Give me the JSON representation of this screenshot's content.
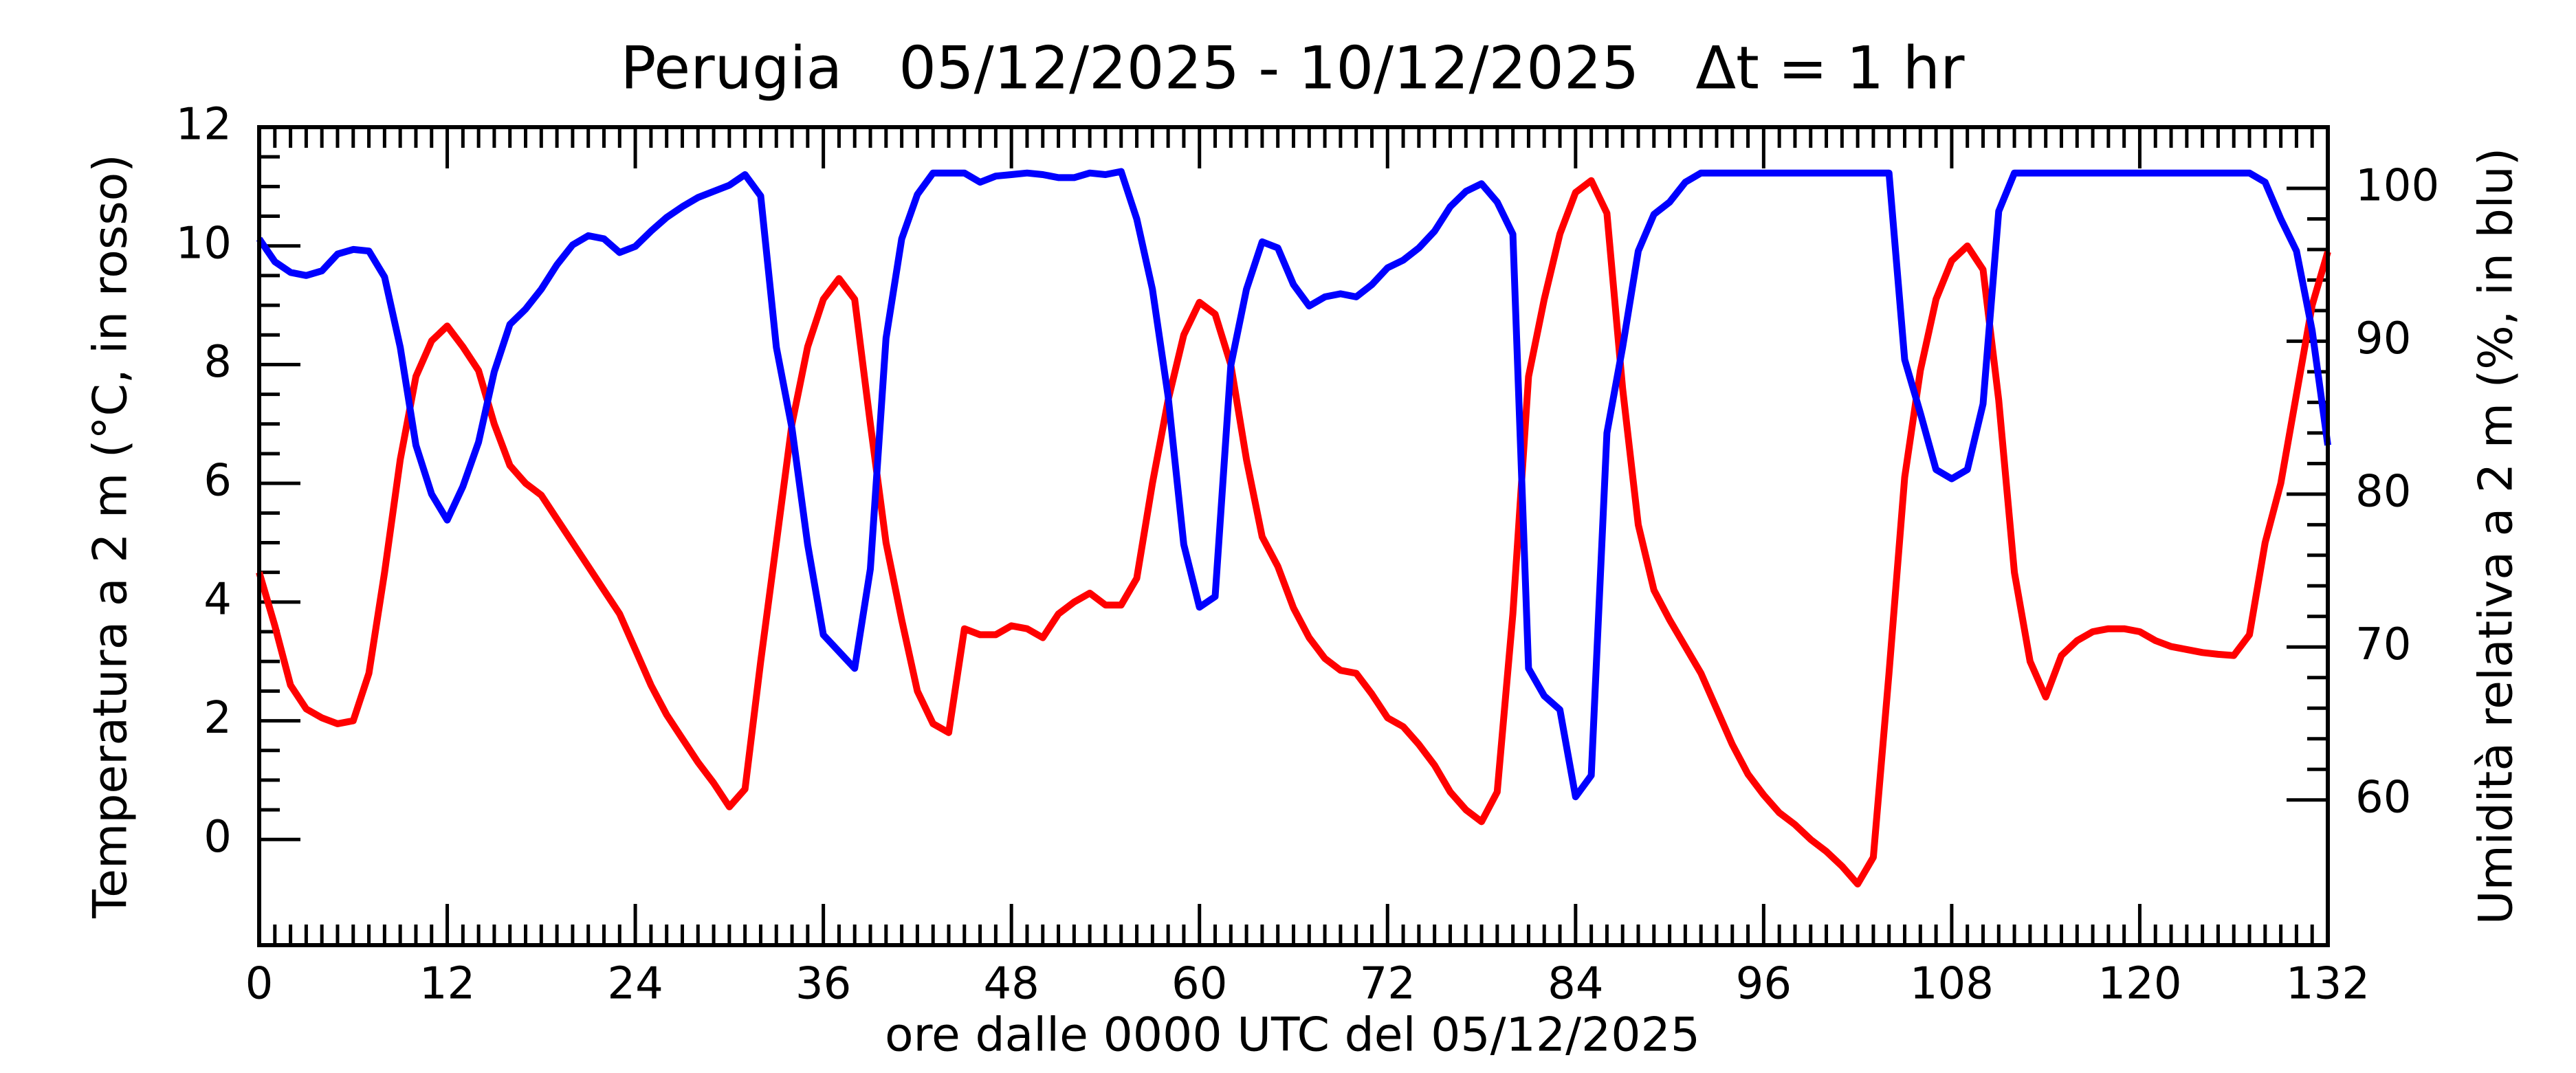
{
  "chart_data": {
    "type": "line",
    "title": "Perugia   05/12/2025 - 10/12/2025   Δt = 1 hr",
    "x_label": "ore dalle 0000 UTC del 05/12/2025",
    "y_label": "Temperatura a 2 m (°C, in rosso)",
    "y2_label": "Umidità relativa a 2 m (%, in blu)",
    "x": [
      0,
      1,
      2,
      3,
      4,
      5,
      6,
      7,
      8,
      9,
      10,
      11,
      12,
      13,
      14,
      15,
      16,
      17,
      18,
      19,
      20,
      21,
      22,
      23,
      24,
      25,
      26,
      27,
      28,
      29,
      30,
      31,
      32,
      33,
      34,
      35,
      36,
      37,
      38,
      39,
      40,
      41,
      42,
      43,
      44,
      45,
      46,
      47,
      48,
      49,
      50,
      51,
      52,
      53,
      54,
      55,
      56,
      57,
      58,
      59,
      60,
      61,
      62,
      63,
      64,
      65,
      66,
      67,
      68,
      69,
      70,
      71,
      72,
      73,
      74,
      75,
      76,
      77,
      78,
      79,
      80,
      81,
      82,
      83,
      84,
      85,
      86,
      87,
      88,
      89,
      90,
      91,
      92,
      93,
      94,
      95,
      96,
      97,
      98,
      99,
      100,
      101,
      102,
      103,
      104,
      105,
      106,
      107,
      108,
      109,
      110,
      111,
      112,
      113,
      114,
      115,
      116,
      117,
      118,
      119,
      120,
      121,
      122,
      123,
      124,
      125,
      126,
      127,
      128,
      129,
      130,
      131,
      132
    ],
    "series": [
      {
        "name": "Temperatura",
        "color": "#ff0000",
        "values": [
          4.5,
          3.6,
          2.6,
          2.2,
          2.05,
          1.95,
          2.0,
          2.8,
          4.5,
          6.4,
          7.8,
          8.4,
          8.65,
          8.3,
          7.9,
          7.0,
          6.3,
          6.0,
          5.8,
          5.4,
          5.0,
          4.6,
          4.2,
          3.8,
          3.2,
          2.6,
          2.1,
          1.7,
          1.3,
          0.95,
          0.55,
          0.85,
          3.0,
          5.0,
          7.0,
          8.3,
          9.1,
          9.45,
          9.1,
          7.0,
          5.0,
          3.7,
          2.5,
          1.95,
          1.8,
          3.55,
          3.45,
          3.45,
          3.6,
          3.55,
          3.4,
          3.8,
          4.0,
          4.15,
          3.95,
          3.95,
          4.4,
          6.0,
          7.4,
          8.5,
          9.05,
          8.85,
          8.0,
          6.4,
          5.1,
          4.6,
          3.9,
          3.4,
          3.05,
          2.85,
          2.8,
          2.45,
          2.05,
          1.9,
          1.6,
          1.25,
          0.8,
          0.5,
          0.3,
          0.8,
          3.8,
          7.8,
          9.1,
          10.2,
          10.9,
          11.1,
          10.55,
          7.6,
          5.3,
          4.2,
          3.7,
          3.25,
          2.8,
          2.2,
          1.6,
          1.1,
          0.75,
          0.45,
          0.25,
          0.0,
          -0.2,
          -0.45,
          -0.75,
          -0.3,
          2.8,
          6.1,
          7.9,
          9.1,
          9.75,
          10.0,
          9.6,
          7.4,
          4.5,
          3.0,
          2.4,
          3.1,
          3.35,
          3.5,
          3.55,
          3.55,
          3.5,
          3.35,
          3.25,
          3.2,
          3.15,
          3.12,
          3.1,
          3.45,
          5.0,
          6.0,
          7.5,
          9.0,
          9.9
        ]
      },
      {
        "name": "Umidità",
        "color": "#0000ff",
        "axis": "y2",
        "values": [
          96.7,
          95.2,
          94.5,
          94.3,
          94.6,
          95.7,
          96.0,
          95.9,
          94.2,
          89.6,
          83.2,
          80.0,
          78.3,
          80.5,
          83.4,
          88.0,
          91.1,
          92.1,
          93.4,
          95.0,
          96.3,
          96.9,
          96.7,
          95.8,
          96.2,
          97.2,
          98.1,
          98.8,
          99.4,
          99.8,
          100.2,
          100.9,
          99.5,
          89.6,
          84.3,
          76.7,
          70.8,
          69.7,
          68.6,
          75.1,
          90.2,
          96.7,
          99.6,
          101.0,
          101.0,
          101.0,
          100.4,
          100.8,
          100.9,
          101.0,
          100.9,
          100.7,
          100.7,
          101.0,
          100.9,
          101.1,
          98.0,
          93.4,
          86.4,
          76.7,
          72.6,
          73.3,
          88.4,
          93.4,
          96.5,
          96.1,
          93.7,
          92.3,
          92.9,
          93.1,
          92.9,
          93.7,
          94.8,
          95.3,
          96.1,
          97.2,
          98.8,
          99.8,
          100.3,
          99.1,
          97.0,
          68.6,
          66.8,
          65.9,
          60.2,
          61.6,
          84.0,
          89.6,
          95.9,
          98.3,
          99.1,
          100.4,
          101.0,
          101.0,
          101.0,
          101.0,
          101.0,
          101.0,
          101.0,
          101.0,
          101.0,
          101.0,
          101.0,
          101.0,
          101.0,
          88.8,
          85.3,
          81.6,
          81.0,
          81.6,
          85.9,
          98.5,
          101.0,
          101.0,
          101.0,
          101.0,
          101.0,
          101.0,
          101.0,
          101.0,
          101.0,
          101.0,
          101.0,
          101.0,
          101.0,
          101.0,
          101.0,
          101.0,
          100.4,
          98.0,
          95.9,
          90.7,
          83.2
        ]
      }
    ],
    "xlim": [
      0,
      132
    ],
    "xticks": [
      0,
      12,
      24,
      36,
      48,
      60,
      72,
      84,
      96,
      108,
      120,
      132
    ],
    "ylim": [
      -1.78,
      12
    ],
    "yticks": [
      0,
      2,
      4,
      6,
      8,
      10,
      12
    ],
    "y2lim": [
      50.5,
      104
    ],
    "y2ticks": [
      60,
      70,
      80,
      90,
      100
    ]
  }
}
